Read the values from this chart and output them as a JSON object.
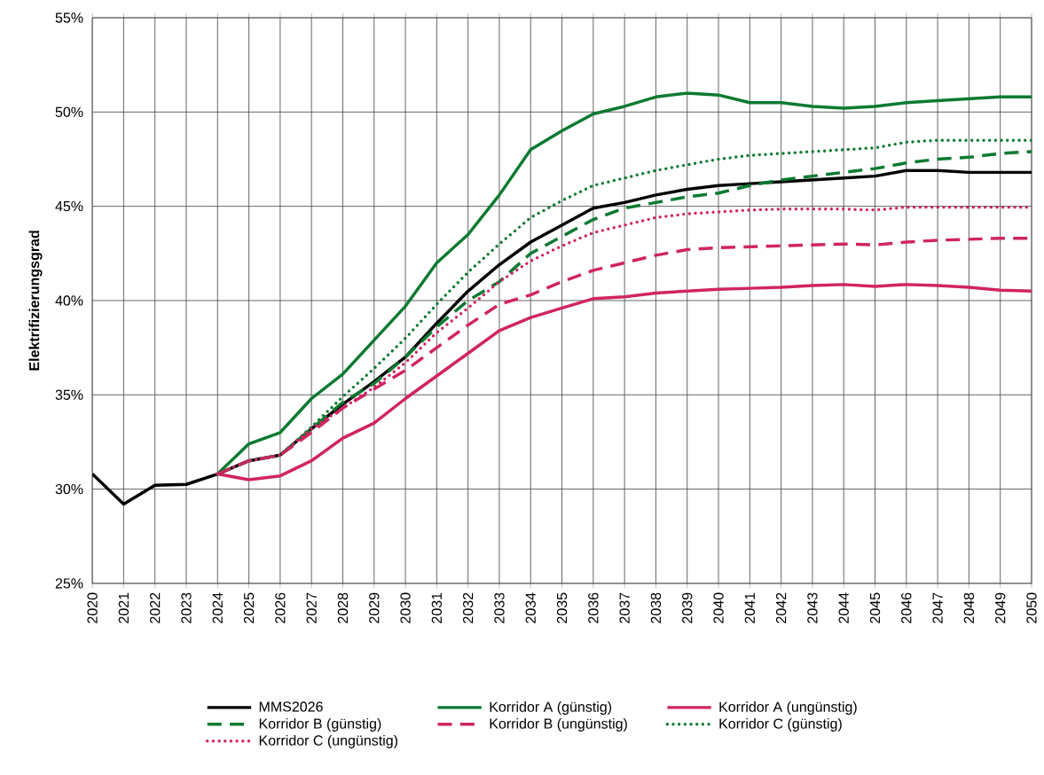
{
  "chart_data": {
    "type": "line",
    "ylabel": "Elektrifizierungsgrad",
    "xlim": [
      2020,
      2050
    ],
    "xticks": [
      2020,
      2021,
      2022,
      2023,
      2024,
      2025,
      2026,
      2027,
      2028,
      2029,
      2030,
      2031,
      2032,
      2033,
      2034,
      2035,
      2036,
      2037,
      2038,
      2039,
      2040,
      2041,
      2042,
      2043,
      2044,
      2045,
      2046,
      2047,
      2048,
      2049,
      2050
    ],
    "ylim": [
      25,
      55
    ],
    "yticks": [
      {
        "value": 25,
        "label": "25%"
      },
      {
        "value": 30,
        "label": "30%"
      },
      {
        "value": 35,
        "label": "35%"
      },
      {
        "value": 40,
        "label": "40%"
      },
      {
        "value": 45,
        "label": "45%"
      },
      {
        "value": 50,
        "label": "50%"
      },
      {
        "value": 55,
        "label": "55%"
      }
    ],
    "grid": true,
    "legend": "bottom",
    "series": [
      {
        "name": "MMS2026",
        "color": "#000000",
        "line_style": "solid",
        "x": [
          2020,
          2021,
          2022,
          2023,
          2024,
          2025,
          2026,
          2027,
          2028,
          2029,
          2030,
          2031,
          2032,
          2033,
          2034,
          2035,
          2036,
          2037,
          2038,
          2039,
          2040,
          2041,
          2042,
          2043,
          2044,
          2045,
          2046,
          2047,
          2048,
          2049,
          2050
        ],
        "values": [
          30.8,
          29.2,
          30.2,
          30.25,
          30.8,
          31.5,
          31.8,
          33.2,
          34.5,
          35.7,
          37.0,
          38.8,
          40.5,
          41.9,
          43.1,
          44.0,
          44.9,
          45.2,
          45.6,
          45.9,
          46.1,
          46.2,
          46.3,
          46.4,
          46.5,
          46.6,
          46.9,
          46.9,
          46.8,
          46.8,
          46.8
        ]
      },
      {
        "name": "Korridor A (günstig)",
        "color": "#0b7a30",
        "line_style": "solid",
        "x": [
          2024,
          2025,
          2026,
          2027,
          2028,
          2029,
          2030,
          2031,
          2032,
          2033,
          2034,
          2035,
          2036,
          2037,
          2038,
          2039,
          2040,
          2041,
          2042,
          2043,
          2044,
          2045,
          2046,
          2047,
          2048,
          2049,
          2050
        ],
        "values": [
          30.8,
          32.4,
          33.0,
          34.8,
          36.1,
          37.9,
          39.7,
          42.0,
          43.5,
          45.6,
          48.0,
          49.0,
          49.9,
          50.3,
          50.8,
          51.0,
          50.9,
          50.5,
          50.5,
          50.3,
          50.2,
          50.3,
          50.5,
          50.6,
          50.7,
          50.8,
          50.8
        ]
      },
      {
        "name": "Korridor A (ungünstig)",
        "color": "#d12461",
        "line_style": "solid",
        "x": [
          2024,
          2025,
          2026,
          2027,
          2028,
          2029,
          2030,
          2031,
          2032,
          2033,
          2034,
          2035,
          2036,
          2037,
          2038,
          2039,
          2040,
          2041,
          2042,
          2043,
          2044,
          2045,
          2046,
          2047,
          2048,
          2049,
          2050
        ],
        "values": [
          30.8,
          30.5,
          30.7,
          31.5,
          32.7,
          33.5,
          34.8,
          36.0,
          37.2,
          38.4,
          39.1,
          39.6,
          40.1,
          40.2,
          40.4,
          40.5,
          40.6,
          40.65,
          40.7,
          40.8,
          40.85,
          40.75,
          40.85,
          40.8,
          40.7,
          40.55,
          40.5
        ]
      },
      {
        "name": "Korridor B (günstig)",
        "color": "#0b7a30",
        "line_style": "dashed",
        "x": [
          2024,
          2025,
          2026,
          2027,
          2028,
          2029,
          2030,
          2031,
          2032,
          2033,
          2034,
          2035,
          2036,
          2037,
          2038,
          2039,
          2040,
          2041,
          2042,
          2043,
          2044,
          2045,
          2046,
          2047,
          2048,
          2049,
          2050
        ],
        "values": [
          30.8,
          31.5,
          31.8,
          33.2,
          34.6,
          35.6,
          37.0,
          38.6,
          40.0,
          41.0,
          42.5,
          43.4,
          44.3,
          44.9,
          45.2,
          45.5,
          45.7,
          46.1,
          46.4,
          46.6,
          46.8,
          47.0,
          47.3,
          47.5,
          47.6,
          47.8,
          47.9
        ]
      },
      {
        "name": "Korridor B (ungünstig)",
        "color": "#d12461",
        "line_style": "dashed",
        "x": [
          2024,
          2025,
          2026,
          2027,
          2028,
          2029,
          2030,
          2031,
          2032,
          2033,
          2034,
          2035,
          2036,
          2037,
          2038,
          2039,
          2040,
          2041,
          2042,
          2043,
          2044,
          2045,
          2046,
          2047,
          2048,
          2049,
          2050
        ],
        "values": [
          30.8,
          31.5,
          31.8,
          33.0,
          34.3,
          35.3,
          36.3,
          37.5,
          38.7,
          39.8,
          40.3,
          41.0,
          41.6,
          42.0,
          42.4,
          42.7,
          42.8,
          42.85,
          42.9,
          42.95,
          43.0,
          42.95,
          43.1,
          43.2,
          43.25,
          43.3,
          43.3
        ]
      },
      {
        "name": "Korridor C (günstig)",
        "color": "#0b7a30",
        "line_style": "dotted",
        "x": [
          2024,
          2025,
          2026,
          2027,
          2028,
          2029,
          2030,
          2031,
          2032,
          2033,
          2034,
          2035,
          2036,
          2037,
          2038,
          2039,
          2040,
          2041,
          2042,
          2043,
          2044,
          2045,
          2046,
          2047,
          2048,
          2049,
          2050
        ],
        "values": [
          30.8,
          31.5,
          31.8,
          33.3,
          34.9,
          36.4,
          38.0,
          39.8,
          41.5,
          43.0,
          44.4,
          45.3,
          46.1,
          46.5,
          46.9,
          47.2,
          47.5,
          47.7,
          47.8,
          47.9,
          48.0,
          48.1,
          48.4,
          48.5,
          48.5,
          48.5,
          48.5
        ]
      },
      {
        "name": "Korridor C (ungünstig)",
        "color": "#d12461",
        "line_style": "dotted",
        "x": [
          2024,
          2025,
          2026,
          2027,
          2028,
          2029,
          2030,
          2031,
          2032,
          2033,
          2034,
          2035,
          2036,
          2037,
          2038,
          2039,
          2040,
          2041,
          2042,
          2043,
          2044,
          2045,
          2046,
          2047,
          2048,
          2049,
          2050
        ],
        "values": [
          30.8,
          31.5,
          31.8,
          33.2,
          34.3,
          35.4,
          36.7,
          38.3,
          39.6,
          41.0,
          42.1,
          42.9,
          43.6,
          44.0,
          44.4,
          44.6,
          44.7,
          44.8,
          44.85,
          44.85,
          44.85,
          44.8,
          44.95,
          44.95,
          44.95,
          44.95,
          44.95
        ]
      }
    ]
  }
}
